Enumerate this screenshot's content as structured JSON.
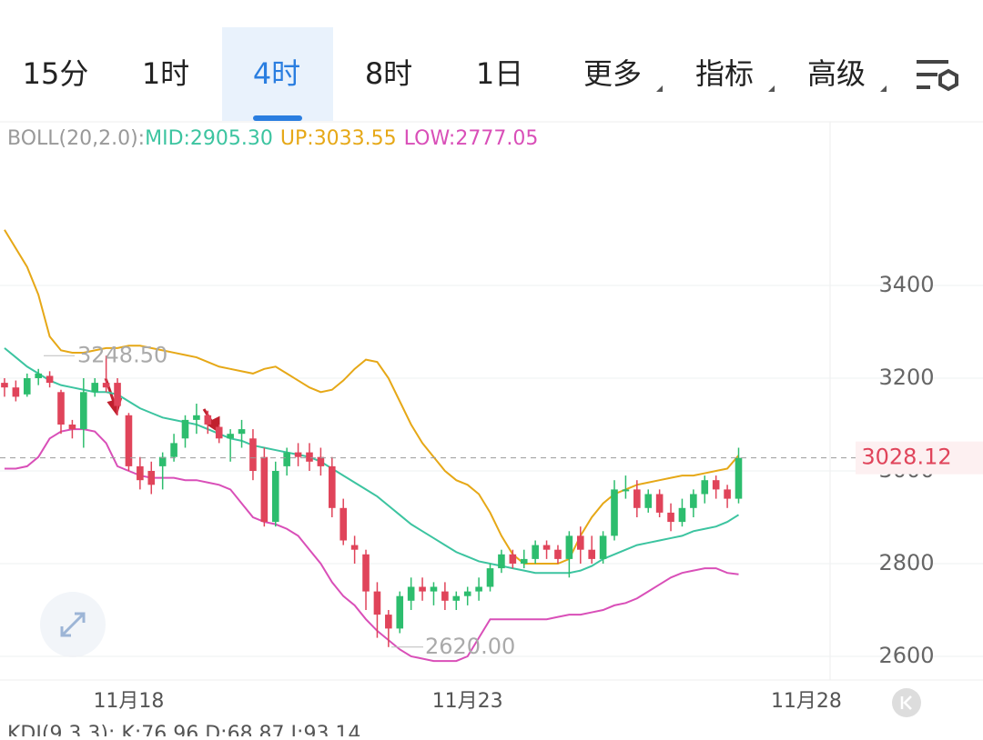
{
  "tabs": [
    "15分",
    "1时",
    "4时",
    "8时",
    "1日",
    "更多",
    "指标",
    "高级"
  ],
  "selected_tab": 2,
  "indicator": {
    "label": "BOLL(20,2.0):",
    "items": [
      {
        "text": "MID:2905.30",
        "color": "#3cc4a0"
      },
      {
        "text": "UP:3033.55",
        "color": "#e6a817"
      },
      {
        "text": "LOW:2777.05",
        "color": "#d94fb8"
      }
    ]
  },
  "sub_indicator": "KDJ(9,3,3): K:76.96 D:68.87 J:93.14",
  "chart_data": {
    "type": "candlestick",
    "up_color": "#2dbd6e",
    "down_color": "#e0445a",
    "xlim": [
      -0.4,
      73.1
    ],
    "xticks": [
      {
        "value": 11,
        "label": "11月18"
      },
      {
        "value": 41,
        "label": "11月23"
      },
      {
        "value": 71,
        "label": "11月28"
      }
    ],
    "ylim": [
      2549,
      3751
    ],
    "yticks": [
      3400,
      3200,
      3000,
      2800,
      2600
    ],
    "grid": true,
    "x": [
      0,
      1,
      2,
      3,
      4,
      5,
      6,
      7,
      8,
      9,
      10,
      11,
      12,
      13,
      14,
      15,
      16,
      17,
      18,
      19,
      20,
      21,
      22,
      23,
      24,
      25,
      26,
      27,
      28,
      29,
      30,
      31,
      32,
      33,
      34,
      35,
      36,
      37,
      38,
      39,
      40,
      41,
      42,
      43,
      44,
      45,
      46,
      47,
      48,
      49,
      50,
      51,
      52,
      53,
      54,
      55,
      56,
      57,
      58,
      59,
      60,
      61,
      62,
      63,
      64,
      65
    ],
    "open": [
      3190,
      3180,
      3165,
      3200,
      3205,
      3170,
      3100,
      3090,
      3170,
      3190,
      3190,
      3120,
      3010,
      3000,
      3010,
      3030,
      3070,
      3110,
      3120,
      3095,
      3070,
      3080,
      3070,
      3030,
      2890,
      3010,
      3040,
      3040,
      3030,
      3010,
      2920,
      2840,
      2820,
      2740,
      2690,
      2660,
      2720,
      2750,
      2740,
      2740,
      2720,
      2730,
      2740,
      2750,
      2790,
      2820,
      2800,
      2810,
      2840,
      2830,
      2810,
      2860,
      2830,
      2810,
      2860,
      2960,
      2960,
      2920,
      2950,
      2910,
      2890,
      2920,
      2950,
      2980,
      2960,
      2940
    ],
    "high": [
      3200,
      3195,
      3210,
      3220,
      3215,
      3175,
      3110,
      3200,
      3200,
      3248.5,
      3200,
      3125,
      3030,
      3020,
      3040,
      3080,
      3120,
      3145,
      3130,
      3100,
      3090,
      3110,
      3090,
      3050,
      3020,
      3050,
      3060,
      3060,
      3050,
      3030,
      2940,
      2860,
      2830,
      2760,
      2700,
      2740,
      2770,
      2770,
      2760,
      2760,
      2740,
      2750,
      2770,
      2800,
      2830,
      2830,
      2830,
      2850,
      2850,
      2840,
      2870,
      2880,
      2860,
      2870,
      2980,
      2990,
      2980,
      2960,
      2960,
      2930,
      2940,
      2960,
      2990,
      2990,
      2970,
      3050
    ],
    "low": [
      3160,
      3150,
      3160,
      3185,
      3180,
      3080,
      3070,
      3050,
      3160,
      3170,
      3120,
      3000,
      2960,
      2950,
      2960,
      3020,
      3050,
      3080,
      3080,
      3060,
      3020,
      3050,
      2980,
      2880,
      2880,
      2990,
      3010,
      3000,
      2990,
      2900,
      2840,
      2800,
      2700,
      2640,
      2620,
      2650,
      2700,
      2720,
      2710,
      2700,
      2700,
      2710,
      2720,
      2740,
      2780,
      2790,
      2790,
      2800,
      2810,
      2800,
      2770,
      2800,
      2800,
      2800,
      2850,
      2940,
      2900,
      2910,
      2900,
      2870,
      2880,
      2900,
      2930,
      2940,
      2920,
      2930
    ],
    "close": [
      3180,
      3160,
      3200,
      3210,
      3190,
      3100,
      3090,
      3170,
      3190,
      3180,
      3140,
      3010,
      2980,
      2970,
      3030,
      3060,
      3110,
      3120,
      3100,
      3070,
      3080,
      3090,
      3000,
      2890,
      3000,
      3040,
      3030,
      3020,
      3010,
      2920,
      2850,
      2830,
      2740,
      2690,
      2660,
      2730,
      2750,
      2740,
      2750,
      2720,
      2730,
      2740,
      2750,
      2790,
      2820,
      2800,
      2810,
      2840,
      2830,
      2810,
      2860,
      2830,
      2810,
      2860,
      2960,
      2960,
      2920,
      2950,
      2910,
      2890,
      2920,
      2950,
      2980,
      2960,
      2940,
      3028.12
    ],
    "series": [
      {
        "color": "#e6a817",
        "values": [
          3520,
          3480,
          3440,
          3380,
          3290,
          3260,
          3255,
          3255,
          3260,
          3265,
          3265,
          3270,
          3270,
          3265,
          3260,
          3255,
          3250,
          3245,
          3235,
          3225,
          3220,
          3215,
          3210,
          3220,
          3225,
          3210,
          3195,
          3180,
          3170,
          3175,
          3195,
          3220,
          3240,
          3235,
          3200,
          3150,
          3100,
          3060,
          3030,
          3000,
          2980,
          2970,
          2950,
          2910,
          2860,
          2820,
          2800,
          2800,
          2800,
          2800,
          2810,
          2860,
          2900,
          2930,
          2950,
          2960,
          2970,
          2975,
          2980,
          2985,
          2990,
          2990,
          2995,
          3000,
          3005,
          3033.55
        ]
      },
      {
        "color": "#3cc4a0",
        "values": [
          3265,
          3245,
          3225,
          3210,
          3195,
          3185,
          3180,
          3175,
          3170,
          3170,
          3165,
          3150,
          3135,
          3125,
          3115,
          3110,
          3105,
          3100,
          3090,
          3080,
          3070,
          3065,
          3055,
          3050,
          3045,
          3040,
          3035,
          3030,
          3020,
          3005,
          2990,
          2975,
          2960,
          2945,
          2925,
          2905,
          2885,
          2870,
          2855,
          2840,
          2825,
          2815,
          2805,
          2800,
          2795,
          2790,
          2785,
          2780,
          2780,
          2780,
          2780,
          2785,
          2795,
          2810,
          2820,
          2830,
          2840,
          2845,
          2850,
          2855,
          2860,
          2870,
          2875,
          2880,
          2890,
          2905.3
        ]
      },
      {
        "color": "#d94fb8",
        "values": [
          3005,
          3005,
          3010,
          3030,
          3070,
          3085,
          3090,
          3090,
          3085,
          3060,
          3010,
          3000,
          2990,
          2985,
          2985,
          2985,
          2980,
          2980,
          2975,
          2970,
          2960,
          2930,
          2900,
          2890,
          2885,
          2875,
          2860,
          2830,
          2800,
          2760,
          2730,
          2710,
          2680,
          2655,
          2635,
          2615,
          2600,
          2595,
          2590,
          2590,
          2590,
          2600,
          2640,
          2680,
          2680,
          2680,
          2680,
          2680,
          2680,
          2685,
          2690,
          2690,
          2695,
          2700,
          2710,
          2715,
          2725,
          2740,
          2755,
          2770,
          2780,
          2785,
          2790,
          2790,
          2780,
          2777.05
        ]
      }
    ],
    "high_label": {
      "value": 3248.5,
      "label": "3248.50"
    },
    "low_label": {
      "value": 2620,
      "label": "2620.00"
    },
    "last_price": 3028.12
  }
}
